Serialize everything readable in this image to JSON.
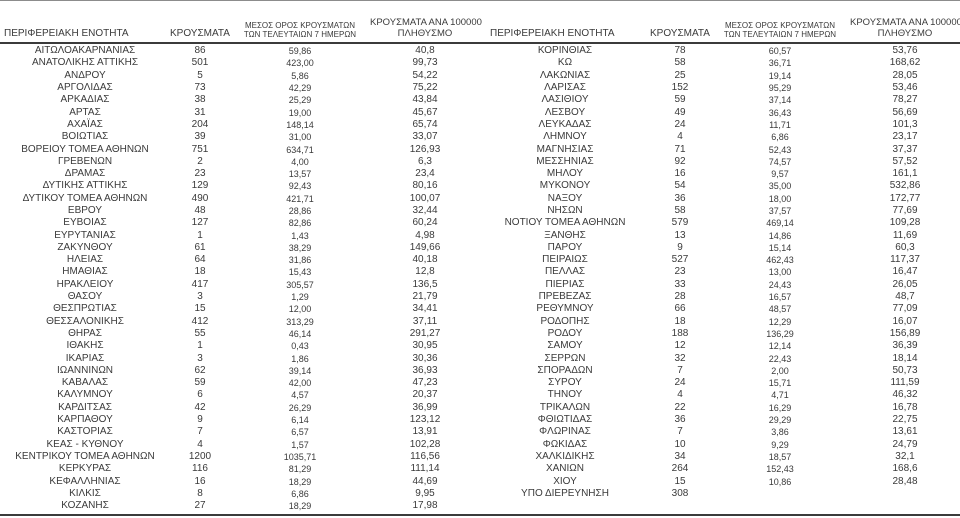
{
  "palette": {
    "background": "#ffffff",
    "text_color": "#3a3a3a",
    "thick_line_color": "#3b3b3b",
    "thin_top_line_color": "#8c8c8c"
  },
  "columns": {
    "region": "ΠΕΡΙΦΕΡΕΙΑΚΗ ΕΝΟΤΗΤΑ",
    "cases": "ΚΡΟΥΣΜΑΤΑ",
    "avg7_line1": "ΜΕΣΟΣ ΟΡΟΣ ΚΡΟΥΣΜΑΤΩΝ",
    "avg7_line2": "ΤΩΝ ΤΕΛΕΥΤΑΙΩΝ 7 ΗΜΕΡΩΝ",
    "per100k_line1": "ΚΡΟΥΣΜΑΤΑ ΑΝΑ 100000",
    "per100k_line2": "ΠΛΗΘΥΣΜΟ"
  },
  "tables": [
    {
      "rows": [
        [
          "ΑΙΤΩΛΟΑΚΑΡΝΑΝΙΑΣ",
          "86",
          "59,86",
          "40,8"
        ],
        [
          "ΑΝΑΤΟΛΙΚΗΣ ΑΤΤΙΚΗΣ",
          "501",
          "423,00",
          "99,73"
        ],
        [
          "ΑΝΔΡΟΥ",
          "5",
          "5,86",
          "54,22"
        ],
        [
          "ΑΡΓΟΛΙΔΑΣ",
          "73",
          "42,29",
          "75,22"
        ],
        [
          "ΑΡΚΑΔΙΑΣ",
          "38",
          "25,29",
          "43,84"
        ],
        [
          "ΑΡΤΑΣ",
          "31",
          "19,00",
          "45,67"
        ],
        [
          "ΑΧΑΪΑΣ",
          "204",
          "148,14",
          "65,74"
        ],
        [
          "ΒΟΙΩΤΙΑΣ",
          "39",
          "31,00",
          "33,07"
        ],
        [
          "ΒΟΡΕΙΟΥ ΤΟΜΕΑ ΑΘΗΝΩΝ",
          "751",
          "634,71",
          "126,93"
        ],
        [
          "ΓΡΕΒΕΝΩΝ",
          "2",
          "4,00",
          "6,3"
        ],
        [
          "ΔΡΑΜΑΣ",
          "23",
          "13,57",
          "23,4"
        ],
        [
          "ΔΥΤΙΚΗΣ ΑΤΤΙΚΗΣ",
          "129",
          "92,43",
          "80,16"
        ],
        [
          "ΔΥΤΙΚΟΥ ΤΟΜΕΑ ΑΘΗΝΩΝ",
          "490",
          "421,71",
          "100,07"
        ],
        [
          "ΕΒΡΟΥ",
          "48",
          "28,86",
          "32,44"
        ],
        [
          "ΕΥΒΟΙΑΣ",
          "127",
          "82,86",
          "60,24"
        ],
        [
          "ΕΥΡΥΤΑΝΙΑΣ",
          "1",
          "1,43",
          "4,98"
        ],
        [
          "ΖΑΚΥΝΘΟΥ",
          "61",
          "38,29",
          "149,66"
        ],
        [
          "ΗΛΕΙΑΣ",
          "64",
          "31,86",
          "40,18"
        ],
        [
          "ΗΜΑΘΙΑΣ",
          "18",
          "15,43",
          "12,8"
        ],
        [
          "ΗΡΑΚΛΕΙΟΥ",
          "417",
          "305,57",
          "136,5"
        ],
        [
          "ΘΑΣΟΥ",
          "3",
          "1,29",
          "21,79"
        ],
        [
          "ΘΕΣΠΡΩΤΙΑΣ",
          "15",
          "12,00",
          "34,41"
        ],
        [
          "ΘΕΣΣΑΛΟΝΙΚΗΣ",
          "412",
          "313,29",
          "37,11"
        ],
        [
          "ΘΗΡΑΣ",
          "55",
          "46,14",
          "291,27"
        ],
        [
          "ΙΘΑΚΗΣ",
          "1",
          "0,43",
          "30,95"
        ],
        [
          "ΙΚΑΡΙΑΣ",
          "3",
          "1,86",
          "30,36"
        ],
        [
          "ΙΩΑΝΝΙΝΩΝ",
          "62",
          "39,14",
          "36,93"
        ],
        [
          "ΚΑΒΑΛΑΣ",
          "59",
          "42,00",
          "47,23"
        ],
        [
          "ΚΑΛΥΜΝΟΥ",
          "6",
          "4,57",
          "20,37"
        ],
        [
          "ΚΑΡΔΙΤΣΑΣ",
          "42",
          "26,29",
          "36,99"
        ],
        [
          "ΚΑΡΠΑΘΟΥ",
          "9",
          "6,14",
          "123,12"
        ],
        [
          "ΚΑΣΤΟΡΙΑΣ",
          "7",
          "6,57",
          "13,91"
        ],
        [
          "ΚΕΑΣ - ΚΥΘΝΟΥ",
          "4",
          "1,57",
          "102,28"
        ],
        [
          "ΚΕΝΤΡΙΚΟΥ ΤΟΜΕΑ ΑΘΗΝΩΝ",
          "1200",
          "1035,71",
          "116,56"
        ],
        [
          "ΚΕΡΚΥΡΑΣ",
          "116",
          "81,29",
          "111,14"
        ],
        [
          "ΚΕΦΑΛΛΗΝΙΑΣ",
          "16",
          "18,29",
          "44,69"
        ],
        [
          "ΚΙΛΚΙΣ",
          "8",
          "6,86",
          "9,95"
        ],
        [
          "ΚΟΖΑΝΗΣ",
          "27",
          "18,29",
          "17,98"
        ]
      ]
    },
    {
      "rows": [
        [
          "ΚΟΡΙΝΘΙΑΣ",
          "78",
          "60,57",
          "53,76"
        ],
        [
          "ΚΩ",
          "58",
          "36,71",
          "168,62"
        ],
        [
          "ΛΑΚΩΝΙΑΣ",
          "25",
          "19,14",
          "28,05"
        ],
        [
          "ΛΑΡΙΣΑΣ",
          "152",
          "95,29",
          "53,46"
        ],
        [
          "ΛΑΣΙΘΙΟΥ",
          "59",
          "37,14",
          "78,27"
        ],
        [
          "ΛΕΣΒΟΥ",
          "49",
          "36,43",
          "56,69"
        ],
        [
          "ΛΕΥΚΑΔΑΣ",
          "24",
          "11,71",
          "101,3"
        ],
        [
          "ΛΗΜΝΟΥ",
          "4",
          "6,86",
          "23,17"
        ],
        [
          "ΜΑΓΝΗΣΙΑΣ",
          "71",
          "52,43",
          "37,37"
        ],
        [
          "ΜΕΣΣΗΝΙΑΣ",
          "92",
          "74,57",
          "57,52"
        ],
        [
          "ΜΗΛΟΥ",
          "16",
          "9,57",
          "161,1"
        ],
        [
          "ΜΥΚΟΝΟΥ",
          "54",
          "35,00",
          "532,86"
        ],
        [
          "ΝΑΞΟΥ",
          "36",
          "18,00",
          "172,77"
        ],
        [
          "ΝΗΣΩΝ",
          "58",
          "37,57",
          "77,69"
        ],
        [
          "ΝΟΤΙΟΥ ΤΟΜΕΑ ΑΘΗΝΩΝ",
          "579",
          "469,14",
          "109,28"
        ],
        [
          "ΞΑΝΘΗΣ",
          "13",
          "14,86",
          "11,69"
        ],
        [
          "ΠΑΡΟΥ",
          "9",
          "15,14",
          "60,3"
        ],
        [
          "ΠΕΙΡΑΙΩΣ",
          "527",
          "462,43",
          "117,37"
        ],
        [
          "ΠΕΛΛΑΣ",
          "23",
          "13,00",
          "16,47"
        ],
        [
          "ΠΙΕΡΙΑΣ",
          "33",
          "24,43",
          "26,05"
        ],
        [
          "ΠΡΕΒΕΖΑΣ",
          "28",
          "16,57",
          "48,7"
        ],
        [
          "ΡΕΘΥΜΝΟΥ",
          "66",
          "48,57",
          "77,09"
        ],
        [
          "ΡΟΔΟΠΗΣ",
          "18",
          "12,29",
          "16,07"
        ],
        [
          "ΡΟΔΟΥ",
          "188",
          "136,29",
          "156,89"
        ],
        [
          "ΣΑΜΟΥ",
          "12",
          "12,14",
          "36,39"
        ],
        [
          "ΣΕΡΡΩΝ",
          "32",
          "22,43",
          "18,14"
        ],
        [
          "ΣΠΟΡΑΔΩΝ",
          "7",
          "2,00",
          "50,73"
        ],
        [
          "ΣΥΡΟΥ",
          "24",
          "15,71",
          "111,59"
        ],
        [
          "ΤΗΝΟΥ",
          "4",
          "4,71",
          "46,32"
        ],
        [
          "ΤΡΙΚΑΛΩΝ",
          "22",
          "16,29",
          "16,78"
        ],
        [
          "ΦΘΙΩΤΙΔΑΣ",
          "36",
          "29,29",
          "22,75"
        ],
        [
          "ΦΛΩΡΙΝΑΣ",
          "7",
          "3,86",
          "13,61"
        ],
        [
          "ΦΩΚΙΔΑΣ",
          "10",
          "9,29",
          "24,79"
        ],
        [
          "ΧΑΛΚΙΔΙΚΗΣ",
          "34",
          "18,57",
          "32,1"
        ],
        [
          "ΧΑΝΙΩΝ",
          "264",
          "152,43",
          "168,6"
        ],
        [
          "ΧΙΟΥ",
          "15",
          "10,86",
          "28,48"
        ],
        [
          "ΥΠΟ ΔΙΕΡΕΥΝΗΣΗ",
          "308",
          "",
          ""
        ]
      ]
    }
  ]
}
